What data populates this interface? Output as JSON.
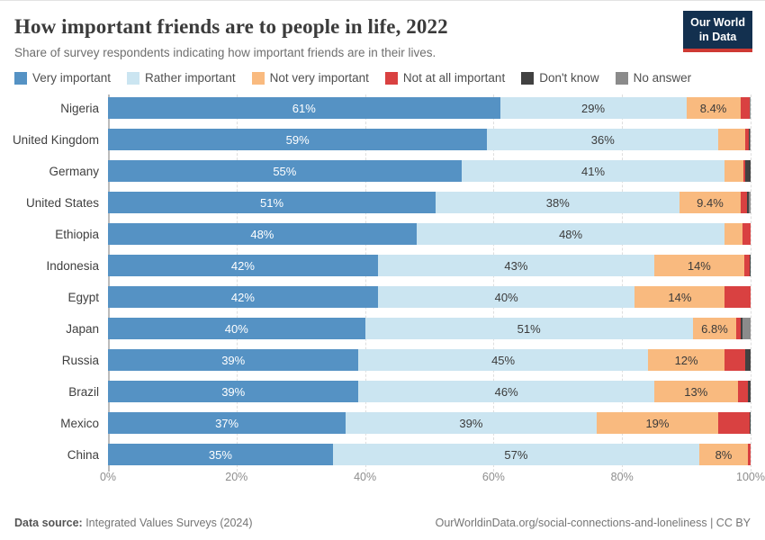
{
  "header": {
    "title": "How important friends are to people in life, 2022",
    "subtitle": "Share of survey respondents indicating how important friends are in their lives.",
    "logo_line1": "Our World",
    "logo_line2": "in Data"
  },
  "footer": {
    "source_label": "Data source:",
    "source_text": " Integrated Values Surveys (2024)",
    "right_text": "OurWorldinData.org/social-connections-and-loneliness | CC BY"
  },
  "colors": {
    "very_important": "#5592C4",
    "rather_important": "#CBE5F1",
    "not_very_important": "#F9BA7F",
    "not_at_all_important": "#D94141",
    "dont_know": "#414141",
    "no_answer": "#8B8B8B",
    "logo_bg": "#13304F",
    "logo_stripe": "#CE3A34"
  },
  "chart_data": {
    "type": "bar",
    "orientation": "horizontal-stacked",
    "legend_position": "top",
    "grid": "dashed-vertical",
    "xlim": [
      0,
      100
    ],
    "axis_ticks": [
      {
        "value": 0,
        "label": "0%"
      },
      {
        "value": 20,
        "label": "20%"
      },
      {
        "value": 40,
        "label": "40%"
      },
      {
        "value": 60,
        "label": "60%"
      },
      {
        "value": 80,
        "label": "80%"
      },
      {
        "value": 100,
        "label": "100%"
      }
    ],
    "categories": [
      "Very important",
      "Rather important",
      "Not very important",
      "Not at all important",
      "Don't know",
      "No answer"
    ],
    "category_colors": [
      "#5592C4",
      "#CBE5F1",
      "#F9BA7F",
      "#D94141",
      "#414141",
      "#8B8B8B"
    ],
    "label_text_colors": [
      "#ffffff",
      "#3b3b3b",
      "#3b3b3b",
      "#ffffff",
      "#ffffff",
      "#ffffff"
    ],
    "rows": [
      {
        "country": "Nigeria",
        "values": [
          61,
          29,
          8.4,
          1.4,
          0.1,
          0.1
        ],
        "labels": [
          "61%",
          "29%",
          "8.4%",
          "",
          "",
          ""
        ]
      },
      {
        "country": "United Kingdom",
        "values": [
          59,
          36,
          4.2,
          0.5,
          0.2,
          0.1
        ],
        "labels": [
          "59%",
          "36%",
          "",
          "",
          "",
          ""
        ]
      },
      {
        "country": "Germany",
        "values": [
          55,
          41,
          2.9,
          0.2,
          0.9,
          0
        ],
        "labels": [
          "55%",
          "41%",
          "",
          "",
          "",
          ""
        ]
      },
      {
        "country": "United States",
        "values": [
          51,
          38,
          9.4,
          1.0,
          0.3,
          0.3
        ],
        "labels": [
          "51%",
          "38%",
          "9.4%",
          "",
          "",
          ""
        ]
      },
      {
        "country": "Ethiopia",
        "values": [
          48,
          48,
          2.8,
          1.2,
          0,
          0
        ],
        "labels": [
          "48%",
          "48%",
          "",
          "",
          "",
          ""
        ]
      },
      {
        "country": "Indonesia",
        "values": [
          42,
          43,
          14,
          0.9,
          0.1,
          0
        ],
        "labels": [
          "42%",
          "43%",
          "14%",
          "",
          "",
          ""
        ]
      },
      {
        "country": "Egypt",
        "values": [
          42,
          40,
          14,
          4.0,
          0,
          0
        ],
        "labels": [
          "42%",
          "40%",
          "14%",
          "",
          "",
          ""
        ]
      },
      {
        "country": "Japan",
        "values": [
          40,
          51,
          6.8,
          0.7,
          0.2,
          1.3
        ],
        "labels": [
          "40%",
          "51%",
          "6.8%",
          "",
          "",
          ""
        ]
      },
      {
        "country": "Russia",
        "values": [
          39,
          45,
          12,
          3.2,
          0.8,
          0
        ],
        "labels": [
          "39%",
          "45%",
          "12%",
          "",
          "",
          ""
        ]
      },
      {
        "country": "Brazil",
        "values": [
          39,
          46,
          13,
          1.6,
          0.4,
          0
        ],
        "labels": [
          "39%",
          "46%",
          "13%",
          "",
          "",
          ""
        ]
      },
      {
        "country": "Mexico",
        "values": [
          37,
          39,
          19,
          4.8,
          0.2,
          0
        ],
        "labels": [
          "37%",
          "39%",
          "19%",
          "",
          "",
          ""
        ]
      },
      {
        "country": "China",
        "values": [
          35,
          57,
          7.6,
          0.4,
          0,
          0
        ],
        "labels": [
          "35%",
          "57%",
          "8%",
          "",
          "",
          ""
        ]
      }
    ]
  }
}
